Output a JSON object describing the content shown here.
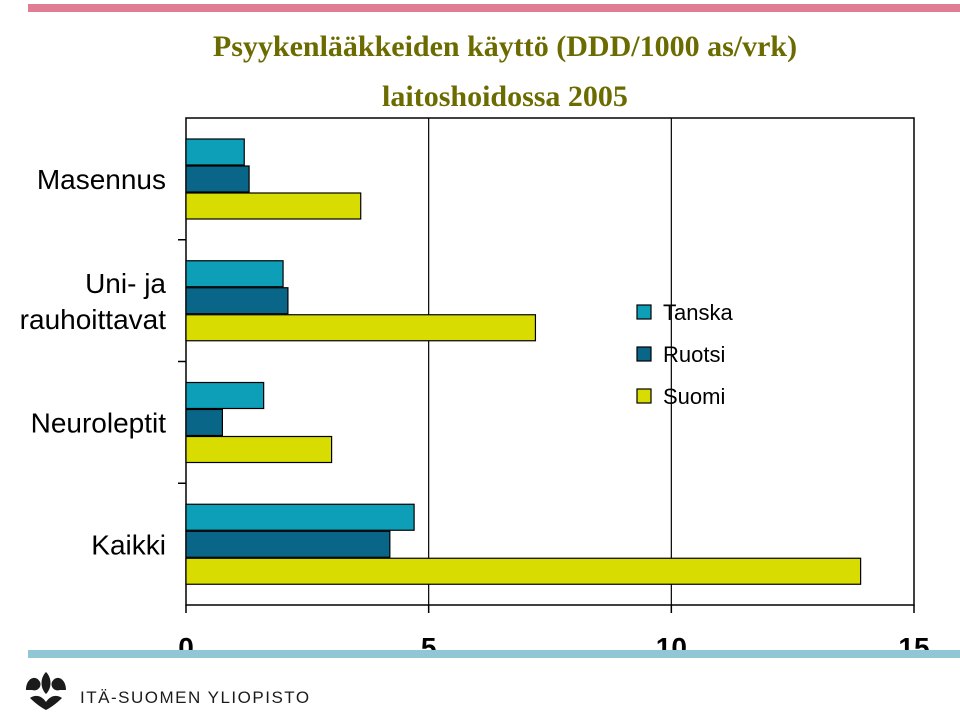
{
  "header": {
    "title_line1": "Psyykenlääkkeiden käyttö  (DDD/1000 as/vrk)",
    "title_line2": "laitoshoidossa 2005"
  },
  "footer": {
    "org_name": "ITÄ-SUOMEN YLIOPISTO"
  },
  "colors": {
    "top_stripe": "#e07c94",
    "bottom_stripe": "#8fc7d4",
    "title": "#6b6b00",
    "logo": "#1b1b1b"
  },
  "chart_data": {
    "type": "bar",
    "orientation": "horizontal",
    "categories": [
      "Masennus",
      "Uni- ja rauhoittavat",
      "Neuroleptit",
      "Kaikki"
    ],
    "category_label_lines": [
      [
        "Masennus"
      ],
      [
        "Uni- ja",
        "rauhoittavat"
      ],
      [
        "Neuroleptit"
      ],
      [
        "Kaikki"
      ]
    ],
    "series": [
      {
        "name": "Tanska",
        "color": "#0e9fb8",
        "values": [
          1.2,
          2.0,
          1.6,
          4.7
        ]
      },
      {
        "name": "Ruotsi",
        "color": "#0a6688",
        "values": [
          1.3,
          2.1,
          0.75,
          4.2
        ]
      },
      {
        "name": "Suomi",
        "color": "#d8dc00",
        "values": [
          3.6,
          7.2,
          3.0,
          13.9
        ]
      }
    ],
    "xlim": [
      0,
      15
    ],
    "xticks": [
      0,
      5,
      10,
      15
    ],
    "xtick_labels": [
      "0",
      "5",
      "10",
      "15"
    ],
    "grid": true,
    "legend_position": "right"
  }
}
